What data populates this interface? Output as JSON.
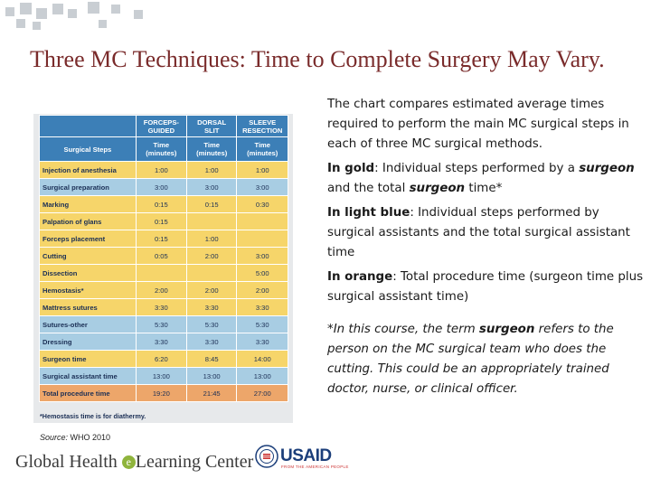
{
  "title": "Three MC Techniques: Time to Complete Surgery May Vary.",
  "table": {
    "columns": [
      {
        "name": "FORCEPS-GUIDED",
        "unit": "Time (minutes)"
      },
      {
        "name": "DORSAL SLIT",
        "unit": "Time (minutes)"
      },
      {
        "name": "SLEEVE RESECTION",
        "unit": "Time (minutes)"
      }
    ],
    "row_header": "Surgical Steps",
    "rows": [
      {
        "step": "Injection of anesthesia",
        "v": [
          "1:00",
          "1:00",
          "1:00"
        ],
        "kind": "gold"
      },
      {
        "step": "Surgical preparation",
        "v": [
          "3:00",
          "3:00",
          "3:00"
        ],
        "kind": "blue"
      },
      {
        "step": "Marking",
        "v": [
          "0:15",
          "0:15",
          "0:30"
        ],
        "kind": "gold"
      },
      {
        "step": "Palpation of glans",
        "v": [
          "0:15",
          "",
          ""
        ],
        "kind": "gold"
      },
      {
        "step": "Forceps placement",
        "v": [
          "0:15",
          "1:00",
          ""
        ],
        "kind": "gold"
      },
      {
        "step": "Cutting",
        "v": [
          "0:05",
          "2:00",
          "3:00"
        ],
        "kind": "gold"
      },
      {
        "step": "Dissection",
        "v": [
          "",
          "",
          "5:00"
        ],
        "kind": "gold"
      },
      {
        "step": "Hemostasis*",
        "v": [
          "2:00",
          "2:00",
          "2:00"
        ],
        "kind": "gold"
      },
      {
        "step": "Mattress sutures",
        "v": [
          "3:30",
          "3:30",
          "3:30"
        ],
        "kind": "gold"
      },
      {
        "step": "Sutures-other",
        "v": [
          "5:30",
          "5:30",
          "5:30"
        ],
        "kind": "blue"
      },
      {
        "step": "Dressing",
        "v": [
          "3:30",
          "3:30",
          "3:30"
        ],
        "kind": "blue"
      },
      {
        "step": "Surgeon time",
        "v": [
          "6:20",
          "8:45",
          "14:00"
        ],
        "kind": "gold"
      },
      {
        "step": "Surgical assistant time",
        "v": [
          "13:00",
          "13:00",
          "13:00"
        ],
        "kind": "blue"
      },
      {
        "step": "Total procedure time",
        "v": [
          "19:20",
          "21:45",
          "27:00"
        ],
        "kind": "orange"
      }
    ],
    "footnote": "*Hemostasis time is for diathermy."
  },
  "source": {
    "label": "Source:",
    "text": "WHO 2010"
  },
  "description": {
    "intro": "The chart compares estimated average times required to perform the main MC surgical steps in each of three MC surgical methods.",
    "gold_label": "In gold",
    "gold_text_a": ": Individual steps performed by a ",
    "gold_em": "surgeon",
    "gold_text_b": " and the total ",
    "gold_em2": "surgeon",
    "gold_text_c": " time*",
    "blue_label": "In light blue",
    "blue_text": ": Individual steps performed by surgical assistants and the total surgical assistant time",
    "orange_label": "In orange",
    "orange_text": ": Total procedure time (surgeon time plus surgical assistant time)",
    "note_a": "*In this course, the term ",
    "note_em": "surgeon",
    "note_b": " refers to the person on the MC surgical team who does the cutting. This could be an appropriately trained doctor, nurse, or clinical officer."
  },
  "footer": {
    "logo_left_a": "Global Health ",
    "logo_left_e": "e",
    "logo_left_b": "Learning Center",
    "logo_right": "USAID",
    "logo_right_sub": "FROM THE AMERICAN PEOPLE"
  },
  "colors": {
    "gold": "#f6d56a",
    "light_blue": "#a8cde3",
    "orange": "#eda66a",
    "header_blue": "#3c7fb7",
    "title": "#7a2b2b"
  }
}
